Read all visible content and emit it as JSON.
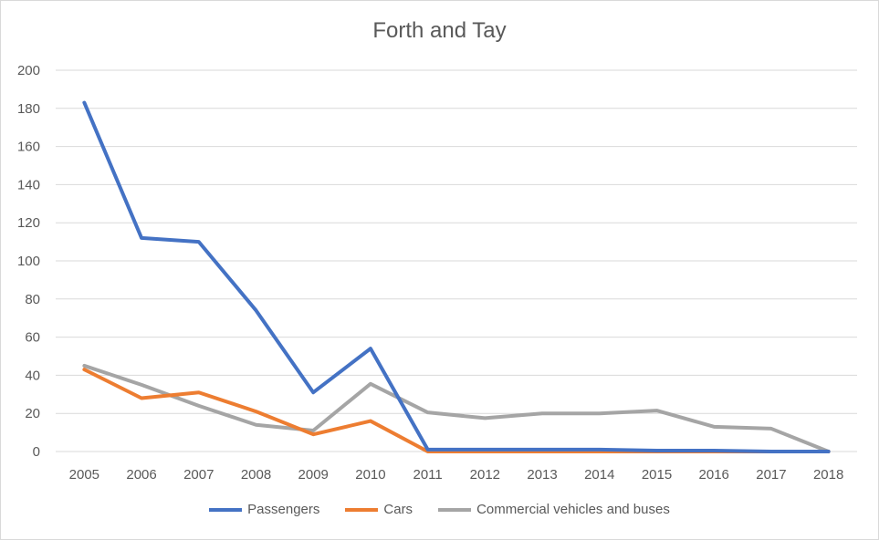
{
  "chart_data": {
    "type": "line",
    "title": "Forth and Tay",
    "xlabel": "",
    "ylabel": "",
    "x": [
      "2005",
      "2006",
      "2007",
      "2008",
      "2009",
      "2010",
      "2011",
      "2012",
      "2013",
      "2014",
      "2015",
      "2016",
      "2017",
      "2018"
    ],
    "ylim": [
      0,
      200
    ],
    "yticks": [
      "0",
      "20",
      "40",
      "60",
      "80",
      "100",
      "120",
      "140",
      "160",
      "180",
      "200"
    ],
    "grid": true,
    "legend_position": "bottom",
    "series": [
      {
        "name": "Passengers",
        "color": "#4472c4",
        "values": [
          183,
          112,
          110,
          74,
          31,
          54,
          1,
          1,
          1,
          1,
          0.5,
          0.5,
          0,
          0
        ]
      },
      {
        "name": "Cars",
        "color": "#ed7d31",
        "values": [
          43,
          28,
          31,
          21,
          9,
          16,
          0,
          0,
          0,
          0,
          0,
          0,
          0,
          0
        ]
      },
      {
        "name": "Commercial vehicles and buses",
        "color": "#a5a5a5",
        "values": [
          45,
          35,
          24,
          14,
          11,
          35.5,
          20.5,
          17.5,
          20,
          20,
          21.5,
          13,
          12,
          0
        ]
      }
    ]
  }
}
